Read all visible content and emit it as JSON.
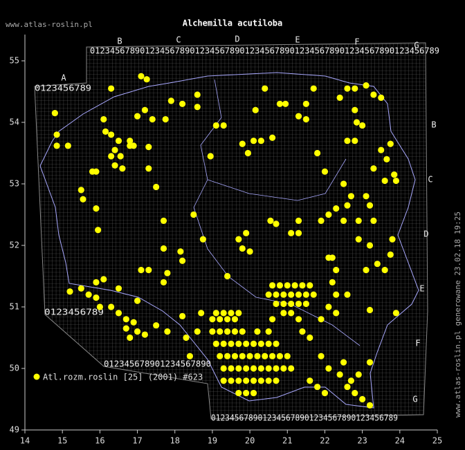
{
  "chart_data": {
    "type": "scatter",
    "title": "Alchemilla acutiloba",
    "site_label": "www.atlas-roslin.pl",
    "side_note": "www.atlas-roslin.pl generowane 23.02.18 19:25",
    "xlim": [
      14,
      25
    ],
    "xticks": [
      14,
      15,
      16,
      17,
      18,
      19,
      20,
      21,
      22,
      23,
      24,
      25
    ],
    "ylim": [
      49,
      55
    ],
    "yticks": [
      49,
      50,
      51,
      52,
      53,
      54,
      55
    ],
    "grid_letters_top": [
      "B",
      "C",
      "D",
      "E",
      "F",
      "G"
    ],
    "grid_letter_left": "A",
    "grid_letters_right": [
      "B",
      "C",
      "D",
      "E",
      "F",
      "G"
    ],
    "digit_rows": [
      "0123456789012345678901234567890123456789012345678901234567890123456789",
      "0123456789",
      "0123456789",
      "012345678901234567890",
      "0123456789012345678901234567890123456789"
    ],
    "series": [
      {
        "name": "Atl.rozm.roslin [25] (2001) #623",
        "color": "#ffff00",
        "x": [
          14.8,
          14.85,
          14.85,
          15.15,
          16.1,
          16.15,
          16.3,
          16.5,
          16.4,
          16.3,
          16.55,
          16.4,
          16.6,
          16.8,
          16.9,
          16.8,
          17.3,
          17,
          17.2,
          17.4,
          17.75,
          17.9,
          18.2,
          18.6,
          18.6,
          17.1,
          17.25,
          16.3,
          15.8,
          15.9,
          15.5,
          15.55,
          15.9,
          15.95,
          17.3,
          17.5,
          17.7,
          18.5,
          19.1,
          19.3,
          19.8,
          20.1,
          20.3,
          20.6,
          20.15,
          20.4,
          20.8,
          20.95,
          21.3,
          21.5,
          21.5,
          21.7,
          18.95,
          19.95,
          21.8,
          22,
          22.6,
          22.8,
          22.4,
          22.6,
          22.8,
          23.1,
          23.3,
          23.5,
          22.8,
          22.85,
          23,
          23.5,
          23.65,
          23.75,
          23.85,
          23.9,
          23.6,
          23.3,
          23.1,
          22.7,
          22.5,
          22.6,
          22.3,
          22.1,
          21.9,
          22.5,
          23.2,
          23.3,
          22.9,
          22.9,
          23.2,
          23.8,
          23.75,
          23.6,
          23.4,
          23.1,
          23.2,
          23.9,
          22.6,
          22.1,
          19.7,
          19.9,
          19.8,
          20.0,
          20.7,
          21.1,
          21.3,
          20.55,
          21.3,
          19.4,
          18.75,
          18.15,
          17.7,
          18.2,
          17.8,
          17.7,
          17.1,
          17.3,
          15.2,
          15.5,
          15.7,
          15.9,
          16,
          16.3,
          16.5,
          16.7,
          16.9,
          17.0,
          16.8,
          16.7,
          17.2,
          17.5,
          17.8,
          17.0,
          16.5,
          15.9,
          16.1,
          19.1,
          19.3,
          19.5,
          19.7,
          20.9,
          21.1,
          19.0,
          19.2,
          19.4,
          19.6,
          20.6,
          21.3,
          19.0,
          19.2,
          19.4,
          19.6,
          19.8,
          20.2,
          20.5,
          21.4,
          19.1,
          19.3,
          19.5,
          19.7,
          19.9,
          20.1,
          20.3,
          20.5,
          20.7,
          19.2,
          19.4,
          19.6,
          19.8,
          20.0,
          20.2,
          20.4,
          20.6,
          20.8,
          21.0,
          19.3,
          19.5,
          19.7,
          19.9,
          20.1,
          20.3,
          20.5,
          20.7,
          20.9,
          21.1,
          19.3,
          19.5,
          19.7,
          19.9,
          20.1,
          20.3,
          20.5,
          20.7,
          19.7,
          19.9,
          20.1,
          20.6,
          20.8,
          21.0,
          21.2,
          21.4,
          21.6,
          20.5,
          20.7,
          20.9,
          21.1,
          21.3,
          21.5,
          21.7,
          20.7,
          20.9,
          21.1,
          21.3,
          21.5,
          22.2,
          22.3,
          22.2,
          22.3,
          22.1,
          21.9,
          22.3,
          21.9,
          22.1,
          22.4,
          22.6,
          22.8,
          23.0,
          23.2,
          22.7,
          22.9,
          22.5,
          23.2,
          21.6,
          21.8,
          22.0,
          18.3,
          18.4,
          18.6,
          18.7,
          18.2,
          21.6
        ],
        "values": [
          54.15,
          53.8,
          53.62,
          53.62,
          54.05,
          53.85,
          53.8,
          53.7,
          53.55,
          53.45,
          53.45,
          53.3,
          53.25,
          53.7,
          53.62,
          53.62,
          53.6,
          54.1,
          54.2,
          54.05,
          54.05,
          54.35,
          54.3,
          54.45,
          54.25,
          54.75,
          54.7,
          54.55,
          53.2,
          53.2,
          52.9,
          52.75,
          52.6,
          52.25,
          53.25,
          52.95,
          52.4,
          52.5,
          53.95,
          53.95,
          53.65,
          53.7,
          53.7,
          53.75,
          54.2,
          54.55,
          54.3,
          54.3,
          54.1,
          54.05,
          54.3,
          54.55,
          53.45,
          53.5,
          53.5,
          53.2,
          53.7,
          53.7,
          54.4,
          54.55,
          54.55,
          54.6,
          54.45,
          54.4,
          54.2,
          54,
          53.95,
          53.55,
          53.4,
          53.65,
          53.15,
          53.05,
          53.05,
          53.25,
          52.8,
          52.8,
          53,
          52.65,
          52.6,
          52.5,
          52.4,
          52.4,
          52.65,
          52.4,
          52.4,
          52.1,
          52,
          52.1,
          51.85,
          51.6,
          51.7,
          51.6,
          50.95,
          50.9,
          51.2,
          51.8,
          52.1,
          52.2,
          51.95,
          51.9,
          52.35,
          52.2,
          52.2,
          52.4,
          52.4,
          51.5,
          52.1,
          51.9,
          51.95,
          51.75,
          51.55,
          51.4,
          51.6,
          51.6,
          51.25,
          51.3,
          51.2,
          51.15,
          51.0,
          51.0,
          50.9,
          50.8,
          50.75,
          50.6,
          50.5,
          50.65,
          50.55,
          50.7,
          50.6,
          51.1,
          51.3,
          51.4,
          51.45,
          50.9,
          50.9,
          50.9,
          50.9,
          50.9,
          50.9,
          50.8,
          50.8,
          50.8,
          50.8,
          50.8,
          50.8,
          50.6,
          50.6,
          50.6,
          50.6,
          50.6,
          50.6,
          50.6,
          50.6,
          50.4,
          50.4,
          50.4,
          50.4,
          50.4,
          50.4,
          50.4,
          50.4,
          50.4,
          50.2,
          50.2,
          50.2,
          50.2,
          50.2,
          50.2,
          50.2,
          50.2,
          50.2,
          50.2,
          50.0,
          50.0,
          50.0,
          50.0,
          50.0,
          50.0,
          50.0,
          50.0,
          50.0,
          50.0,
          49.8,
          49.8,
          49.8,
          49.8,
          49.8,
          49.8,
          49.8,
          49.8,
          49.6,
          49.6,
          49.6,
          51.35,
          51.35,
          51.35,
          51.35,
          51.35,
          51.35,
          51.2,
          51.2,
          51.2,
          51.2,
          51.2,
          51.2,
          51.2,
          51.05,
          51.05,
          51.05,
          51.05,
          51.05,
          51.8,
          51.6,
          51.4,
          51.2,
          51.0,
          50.8,
          50.9,
          50.2,
          50.0,
          49.9,
          49.7,
          49.6,
          49.5,
          49.4,
          49.8,
          49.9,
          50.1,
          50.1,
          49.8,
          49.7,
          49.6,
          50.5,
          50.2,
          50.6,
          50.9,
          50.85,
          50.5
        ]
      }
    ]
  }
}
